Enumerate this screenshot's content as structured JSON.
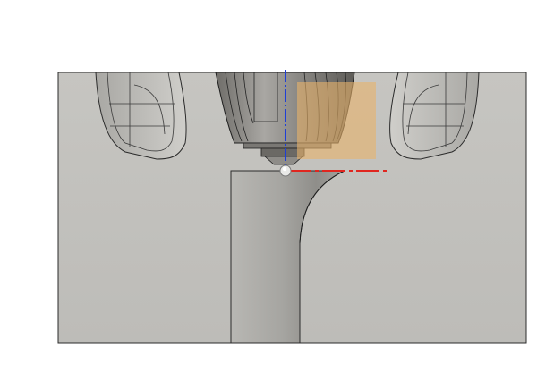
{
  "viewport": {
    "background": "#ffffff",
    "part_face_color": "#c3c2be",
    "part_outline_color": "#2b2b2b",
    "fillet_shade_color": "#a09f9b",
    "nozzle_body_color": "#8d8b87",
    "selection_plane_color": "#e8b36a",
    "axis_z_color": "#1f3fd6",
    "axis_x_color": "#e0261f"
  },
  "icons": {
    "origin_point": "origin-point-icon"
  }
}
